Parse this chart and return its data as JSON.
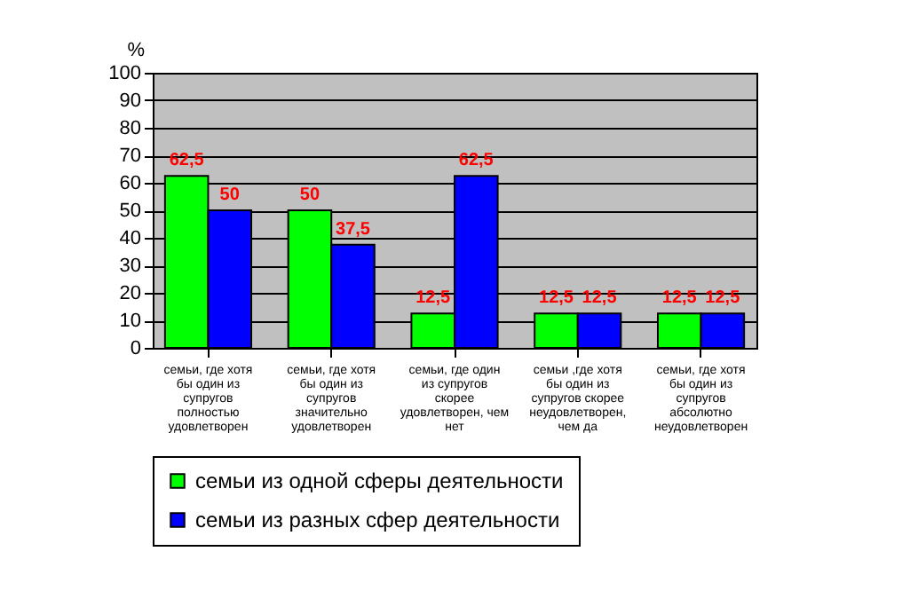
{
  "chart_data": {
    "type": "bar",
    "ylabel": "%",
    "categories": [
      "семьи, где хотя бы один из супругов полностью удовлетворен",
      "семьи, где хотя бы один из супругов значительно удовлетворен",
      "семьи, где один из супругов скорее удовлетворен, чем нет",
      "семьи ,где хотя бы один из супругов скорее неудовлетворен, чем да",
      "семьи, где хотя бы один из супругов абсолютно неудовлетворен"
    ],
    "series": [
      {
        "name": "семьи из одной сферы деятельности",
        "color": "#00ff00",
        "values": [
          62.5,
          50,
          12.5,
          12.5,
          12.5
        ],
        "value_labels": [
          "62,5",
          "50",
          "12,5",
          "12,5",
          "12,5"
        ]
      },
      {
        "name": "семьи из разных сфер деятельности",
        "color": "#0000ff",
        "values": [
          50,
          37.5,
          62.5,
          12.5,
          12.5
        ],
        "value_labels": [
          "50",
          "37,5",
          "62,5",
          "12,5",
          "12,5"
        ]
      }
    ],
    "ylim": [
      0,
      100
    ],
    "yticks": [
      0,
      10,
      20,
      30,
      40,
      50,
      60,
      70,
      80,
      90,
      100
    ],
    "grid": "y",
    "legend": "bottom"
  }
}
